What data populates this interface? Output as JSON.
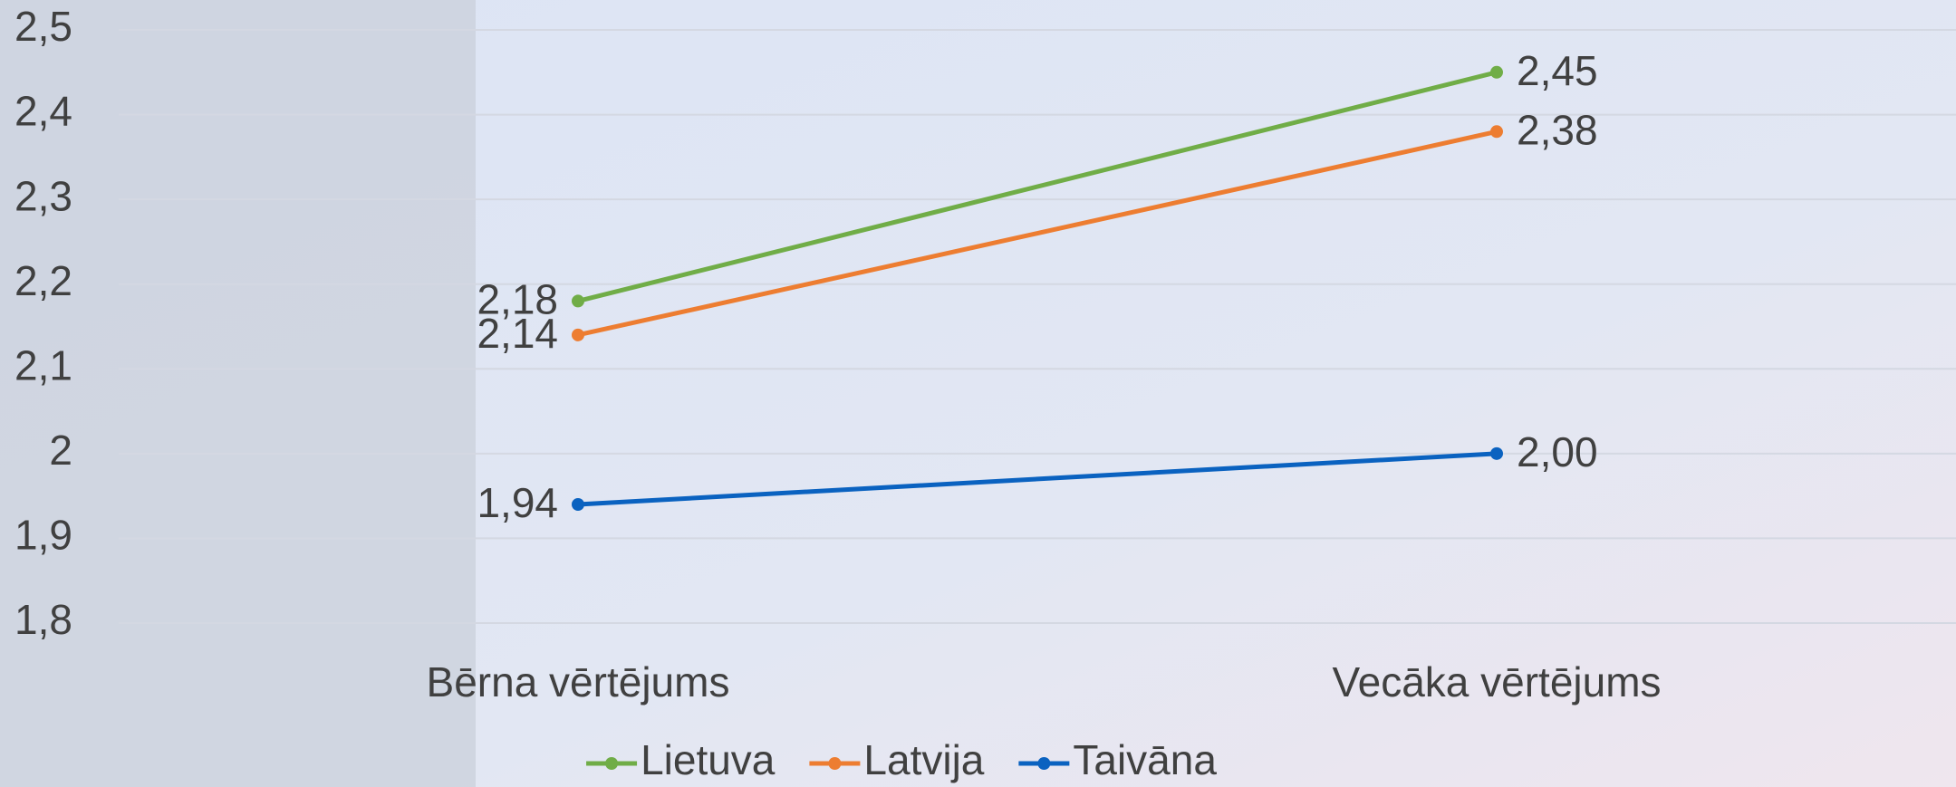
{
  "chart_data": {
    "type": "line",
    "categories": [
      "Bērna vērtējums",
      "Vecāka vērtējums"
    ],
    "series": [
      {
        "name": "Lietuva",
        "color": "#70ad47",
        "values": [
          2.18,
          2.45
        ],
        "value_labels": [
          "2,18",
          "2,45"
        ]
      },
      {
        "name": "Latvija",
        "color": "#ed7d31",
        "values": [
          2.14,
          2.38
        ],
        "value_labels": [
          "2,14",
          "2,38"
        ]
      },
      {
        "name": "Taivāna",
        "color": "#0a62c0",
        "values": [
          1.94,
          2.0
        ],
        "value_labels": [
          "1,94",
          "2,00"
        ]
      }
    ],
    "ylim": [
      1.8,
      2.5
    ],
    "yticks": [
      {
        "value": 1.8,
        "label": "1,8"
      },
      {
        "value": 1.9,
        "label": "1,9"
      },
      2,
      {
        "value": 2.1,
        "label": "2,1"
      },
      {
        "value": 2.2,
        "label": "2,2"
      },
      {
        "value": 2.3,
        "label": "2,3"
      },
      {
        "value": 2.4,
        "label": "2,4"
      },
      {
        "value": 2.5,
        "label": "2,5"
      }
    ],
    "grid": true,
    "legend": "bottom"
  }
}
